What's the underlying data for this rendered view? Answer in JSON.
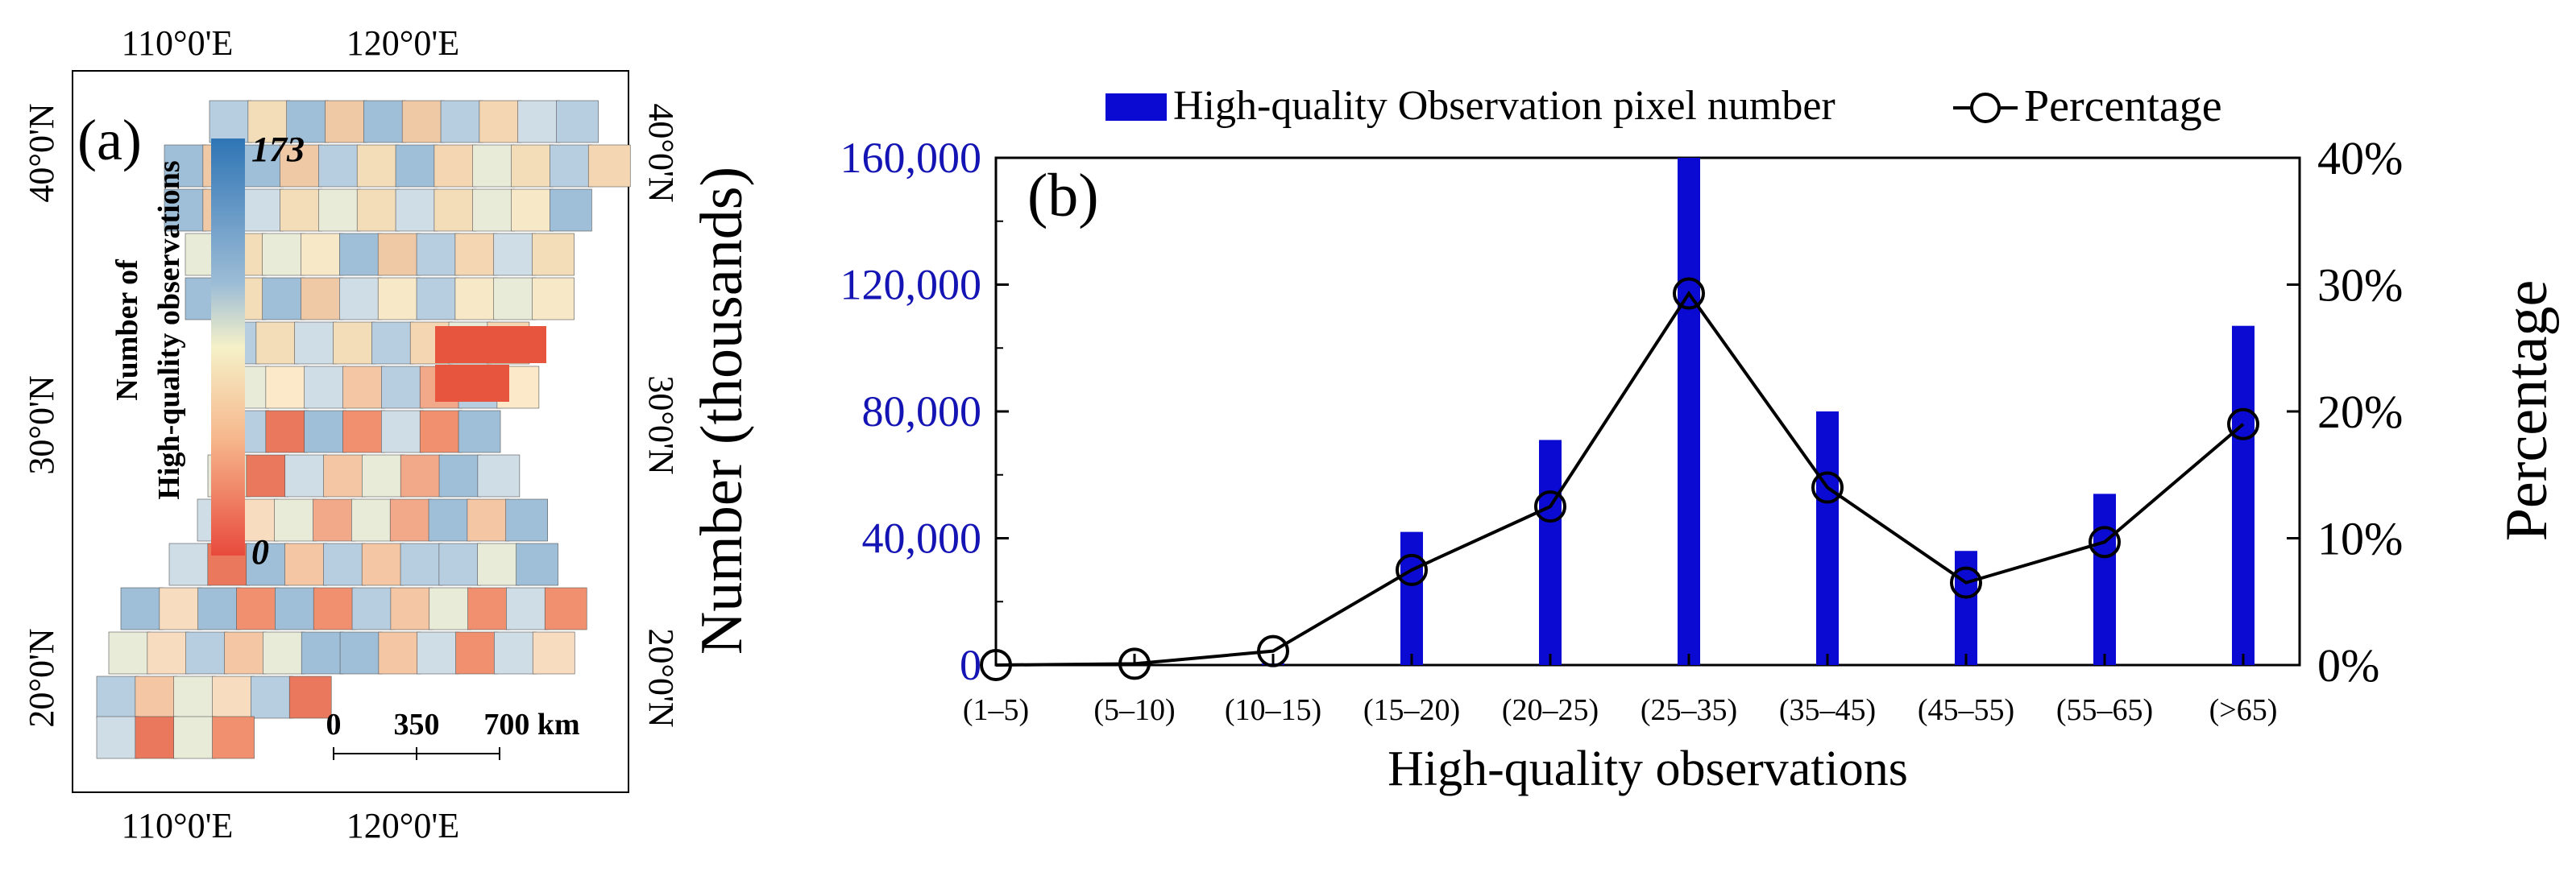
{
  "panel_a": {
    "label": "(a)",
    "top_ticks": [
      "110°0'E",
      "120°0'E"
    ],
    "bottom_ticks": [
      "110°0'E",
      "120°0'E"
    ],
    "left_ticks": [
      "40°0'N",
      "30°0'N",
      "20°0'N"
    ],
    "right_ticks": [
      "40°0'N",
      "30°0'N",
      "20°0'N"
    ],
    "colorbar": {
      "title_line1": "Number of",
      "title_line2": "High-quality observations",
      "max_label": "173",
      "min_label": "0",
      "colors": [
        "#2f75b5",
        "#9dbdd6",
        "#f5f1c8",
        "#f6b78c",
        "#e84a3c"
      ]
    },
    "scalebar": {
      "labels": [
        "0",
        "350",
        "700 km"
      ]
    }
  },
  "chart_data": {
    "type": "bar",
    "panel_label": "(b)",
    "categories": [
      "(1–5)",
      "(5–10)",
      "(10–15)",
      "(15–20)",
      "(20–25)",
      "(25–35)",
      "(35–45)",
      "(45–55)",
      "(55–65)",
      "(>65)"
    ],
    "series": [
      {
        "name": "High-quality Observation pixel number",
        "type": "bar",
        "axis": "left",
        "color": "#0a0ad2",
        "values": [
          0,
          0,
          500,
          42000,
          71000,
          164000,
          80000,
          36000,
          54000,
          107000
        ]
      },
      {
        "name": "Percentage",
        "type": "line",
        "axis": "right",
        "color": "#000000",
        "values": [
          0,
          0.1,
          1.1,
          7.5,
          12.5,
          29.3,
          14,
          6.5,
          9.7,
          19
        ]
      }
    ],
    "xlabel": "High-quality observations",
    "ylabel_left": "Number (thousands)",
    "ylabel_right": "Percentage",
    "ylim_left": [
      0,
      160000
    ],
    "ylim_right": [
      0,
      40
    ],
    "left_ticks": [
      "0",
      "40,000",
      "80,000",
      "120,000",
      "160,000"
    ],
    "right_ticks": [
      "0%",
      "10%",
      "20%",
      "30%",
      "40%"
    ],
    "left_tick_color": "#1414b4",
    "legend_position": "top"
  }
}
